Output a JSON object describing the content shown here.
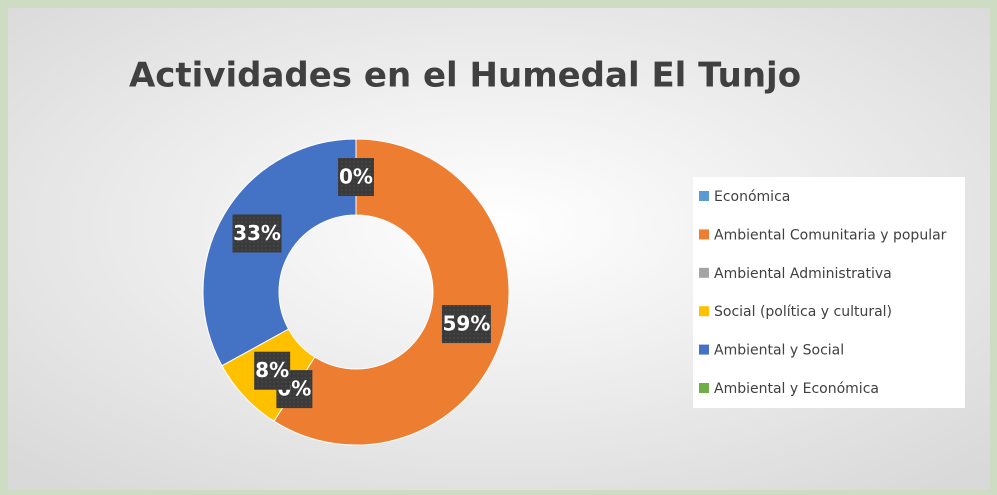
{
  "chart_data": {
    "type": "pie",
    "title": "Actividades en el Humedal El Tunjo",
    "categories": [
      "Económica",
      "Ambiental Comunitaria y popular",
      "Ambiental Administrativa",
      "Social (política y cultural)",
      "Ambiental y Social",
      "Ambiental y Económica"
    ],
    "values": [
      0,
      59,
      0,
      8,
      33,
      0
    ],
    "value_labels": [
      "0%",
      "59%",
      "0%",
      "8%",
      "33%",
      "0%"
    ],
    "colors": [
      "#5b9bd5",
      "#ed7d31",
      "#a5a5a5",
      "#ffc000",
      "#4472c4",
      "#70ad47"
    ],
    "donut": true,
    "legend": "right"
  }
}
